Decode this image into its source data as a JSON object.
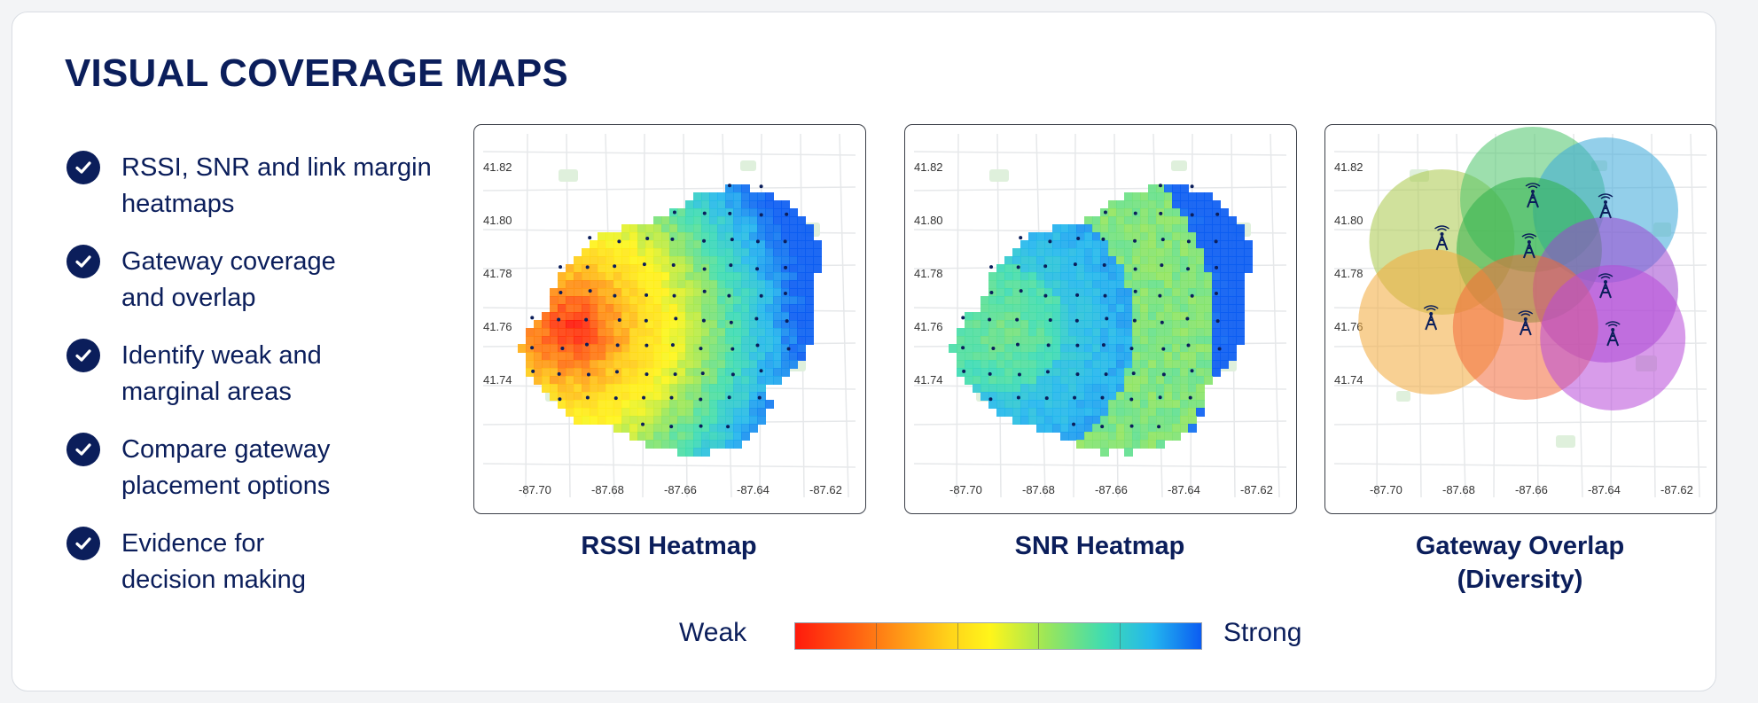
{
  "title": "VISUAL COVERAGE MAPS",
  "bullets": [
    {
      "line1": "RSSI, SNR and link margin",
      "line2": "heatmaps"
    },
    {
      "line1": "Gateway coverage",
      "line2": "and overlap"
    },
    {
      "line1": "Identify weak and",
      "line2": "marginal areas"
    },
    {
      "line1": "Compare gateway",
      "line2": "placement options"
    },
    {
      "line1": "Evidence for",
      "line2": "decision making"
    }
  ],
  "maps": [
    {
      "title": "RSSI Heatmap",
      "type": "heatmap",
      "palette": "red-to-blue"
    },
    {
      "title": "SNR Heatmap",
      "type": "heatmap",
      "palette": "blue-to-cyan"
    },
    {
      "title_line1": "Gateway Overlap",
      "title_line2": "(Diversity)",
      "type": "gateway-overlap"
    }
  ],
  "axes": {
    "y_ticks": [
      "41.82",
      "41.80",
      "41.78",
      "41.76",
      "41.74"
    ],
    "x_ticks": [
      "-87.70",
      "-87.68",
      "-87.66",
      "-87.64",
      "-87.62"
    ]
  },
  "legend": {
    "weak_label": "Weak",
    "strong_label": "Strong"
  },
  "colors": {
    "accent": "#0b1e5b",
    "scale": [
      "#ff1a0c",
      "#ff7a14",
      "#ffd31a",
      "#fff51a",
      "#9ae65a",
      "#3fdcb2",
      "#23b6ee",
      "#0b5cf2"
    ]
  },
  "chart_data": [
    {
      "type": "heatmap",
      "title": "RSSI Heatmap",
      "x_ticks": [
        -87.7,
        -87.68,
        -87.66,
        -87.64,
        -87.62
      ],
      "y_ticks": [
        41.82,
        41.8,
        41.78,
        41.76,
        41.74
      ],
      "xlim": [
        -87.705,
        -87.615
      ],
      "ylim": [
        41.735,
        41.825
      ],
      "grid": false
    },
    {
      "type": "heatmap",
      "title": "SNR Heatmap",
      "x_ticks": [
        -87.7,
        -87.68,
        -87.66,
        -87.64,
        -87.62
      ],
      "y_ticks": [
        41.82,
        41.8,
        41.78,
        41.76,
        41.74
      ],
      "xlim": [
        -87.705,
        -87.615
      ],
      "ylim": [
        41.735,
        41.825
      ],
      "grid": false
    },
    {
      "type": "scatter",
      "title": "Gateway Overlap (Diversity)",
      "x_ticks": [
        -87.7,
        -87.68,
        -87.66,
        -87.64,
        -87.62
      ],
      "y_ticks": [
        41.82,
        41.8,
        41.78,
        41.76,
        41.74
      ],
      "gateways": [
        {
          "lon": -87.685,
          "lat": 41.79,
          "color": "#a9c94a"
        },
        {
          "lon": -87.66,
          "lat": 41.806,
          "color": "#4cc46a"
        },
        {
          "lon": -87.64,
          "lat": 41.802,
          "color": "#3aa8d8"
        },
        {
          "lon": -87.661,
          "lat": 41.787,
          "color": "#30b04a"
        },
        {
          "lon": -87.64,
          "lat": 41.772,
          "color": "#9e45d0"
        },
        {
          "lon": -87.688,
          "lat": 41.76,
          "color": "#f2a93a"
        },
        {
          "lon": -87.662,
          "lat": 41.758,
          "color": "#f26a3a"
        },
        {
          "lon": -87.638,
          "lat": 41.754,
          "color": "#b84ad8"
        }
      ]
    }
  ]
}
